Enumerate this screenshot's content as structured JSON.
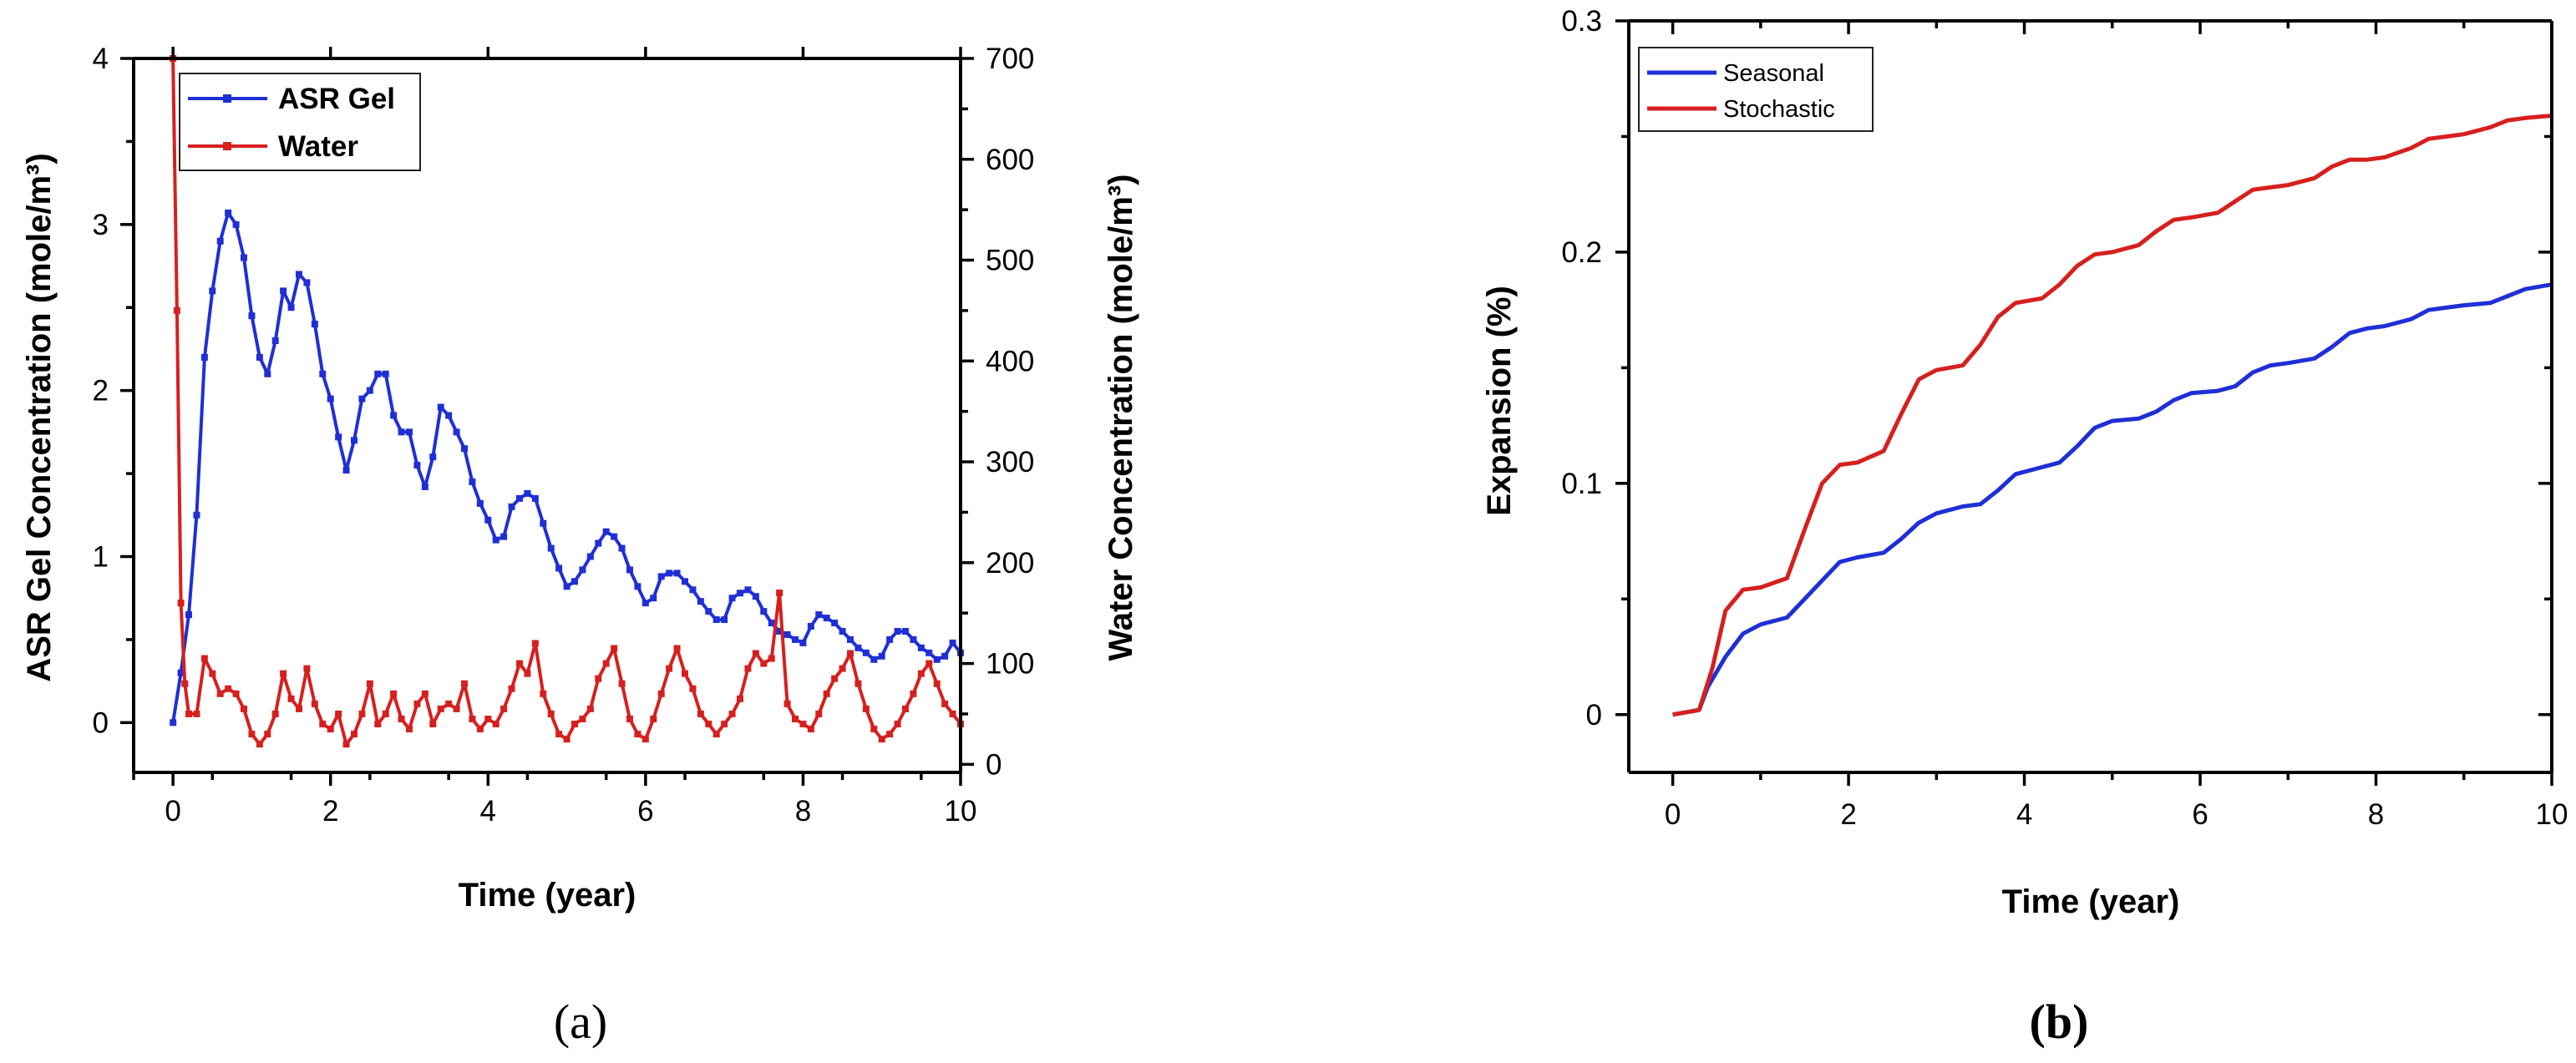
{
  "chart_data": [
    {
      "type": "line",
      "panel_label": "(a)",
      "xlabel": "Time (year)",
      "ylabel": "ASR Gel Concentration (mole/m³)",
      "y2label": "Water Concentration (mole/m³)",
      "xlim": [
        -0.5,
        10
      ],
      "ylim": [
        -0.3,
        4
      ],
      "y2lim": [
        0,
        700
      ],
      "xticks": [
        0,
        2,
        4,
        6,
        8,
        10
      ],
      "yticks": [
        0,
        1,
        2,
        3,
        4
      ],
      "y2ticks": [
        0,
        100,
        200,
        300,
        400,
        500,
        600,
        700
      ],
      "legend_position": "top-left",
      "series": [
        {
          "name": "ASR Gel",
          "axis": "left",
          "color": "#1f2fd6",
          "marker": "square",
          "x": [
            0,
            0.1,
            0.2,
            0.3,
            0.4,
            0.5,
            0.6,
            0.7,
            0.8,
            0.9,
            1.0,
            1.1,
            1.2,
            1.3,
            1.4,
            1.5,
            1.6,
            1.7,
            1.8,
            1.9,
            2.0,
            2.1,
            2.2,
            2.3,
            2.4,
            2.5,
            2.6,
            2.7,
            2.8,
            2.9,
            3.0,
            3.1,
            3.2,
            3.3,
            3.4,
            3.5,
            3.6,
            3.7,
            3.8,
            3.9,
            4.0,
            4.1,
            4.2,
            4.3,
            4.4,
            4.5,
            4.6,
            4.7,
            4.8,
            4.9,
            5.0,
            5.1,
            5.2,
            5.3,
            5.4,
            5.5,
            5.6,
            5.7,
            5.8,
            5.9,
            6.0,
            6.1,
            6.2,
            6.3,
            6.4,
            6.5,
            6.6,
            6.7,
            6.8,
            6.9,
            7.0,
            7.1,
            7.2,
            7.3,
            7.4,
            7.5,
            7.6,
            7.7,
            7.8,
            7.9,
            8.0,
            8.1,
            8.2,
            8.3,
            8.4,
            8.5,
            8.6,
            8.7,
            8.8,
            8.9,
            9.0,
            9.1,
            9.2,
            9.3,
            9.4,
            9.5,
            9.6,
            9.7,
            9.8,
            9.9,
            10.0
          ],
          "y": [
            0,
            0.3,
            0.65,
            1.25,
            2.2,
            2.6,
            2.9,
            3.07,
            3.0,
            2.8,
            2.45,
            2.2,
            2.1,
            2.3,
            2.6,
            2.5,
            2.7,
            2.65,
            2.4,
            2.1,
            1.95,
            1.72,
            1.52,
            1.7,
            1.95,
            2.0,
            2.1,
            2.1,
            1.85,
            1.75,
            1.75,
            1.55,
            1.42,
            1.6,
            1.9,
            1.85,
            1.75,
            1.65,
            1.45,
            1.32,
            1.22,
            1.1,
            1.12,
            1.3,
            1.35,
            1.38,
            1.35,
            1.2,
            1.05,
            0.93,
            0.82,
            0.85,
            0.92,
            1.0,
            1.08,
            1.15,
            1.12,
            1.05,
            0.92,
            0.82,
            0.72,
            0.75,
            0.88,
            0.9,
            0.9,
            0.85,
            0.8,
            0.73,
            0.67,
            0.62,
            0.62,
            0.75,
            0.78,
            0.8,
            0.76,
            0.67,
            0.6,
            0.55,
            0.53,
            0.5,
            0.48,
            0.58,
            0.65,
            0.63,
            0.6,
            0.55,
            0.5,
            0.45,
            0.42,
            0.38,
            0.4,
            0.5,
            0.55,
            0.55,
            0.5,
            0.45,
            0.42,
            0.38,
            0.4,
            0.48,
            0.42
          ]
        },
        {
          "name": "Water",
          "axis": "right",
          "color": "#d6201e",
          "marker": "square",
          "x": [
            0,
            0.05,
            0.1,
            0.15,
            0.2,
            0.3,
            0.4,
            0.5,
            0.6,
            0.7,
            0.8,
            0.9,
            1.0,
            1.1,
            1.2,
            1.3,
            1.4,
            1.5,
            1.6,
            1.7,
            1.8,
            1.9,
            2.0,
            2.1,
            2.2,
            2.3,
            2.4,
            2.5,
            2.6,
            2.7,
            2.8,
            2.9,
            3.0,
            3.1,
            3.2,
            3.3,
            3.4,
            3.5,
            3.6,
            3.7,
            3.8,
            3.9,
            4.0,
            4.1,
            4.2,
            4.3,
            4.4,
            4.5,
            4.6,
            4.7,
            4.8,
            4.9,
            5.0,
            5.1,
            5.2,
            5.3,
            5.4,
            5.5,
            5.6,
            5.7,
            5.8,
            5.9,
            6.0,
            6.1,
            6.2,
            6.3,
            6.4,
            6.5,
            6.6,
            6.7,
            6.8,
            6.9,
            7.0,
            7.1,
            7.2,
            7.3,
            7.4,
            7.5,
            7.6,
            7.7,
            7.8,
            7.9,
            8.0,
            8.1,
            8.2,
            8.3,
            8.4,
            8.5,
            8.6,
            8.7,
            8.8,
            8.9,
            9.0,
            9.1,
            9.2,
            9.3,
            9.4,
            9.5,
            9.6,
            9.7,
            9.8,
            9.9,
            10.0
          ],
          "y": [
            700,
            450,
            160,
            80,
            50,
            50,
            105,
            90,
            70,
            75,
            70,
            55,
            30,
            20,
            30,
            50,
            90,
            65,
            55,
            95,
            60,
            40,
            35,
            50,
            20,
            30,
            50,
            80,
            40,
            50,
            70,
            45,
            35,
            60,
            70,
            40,
            55,
            60,
            55,
            80,
            45,
            35,
            45,
            40,
            55,
            75,
            100,
            90,
            120,
            70,
            50,
            30,
            25,
            40,
            45,
            55,
            85,
            100,
            115,
            80,
            45,
            30,
            25,
            45,
            70,
            95,
            115,
            90,
            75,
            50,
            40,
            30,
            40,
            50,
            65,
            95,
            110,
            100,
            105,
            170,
            60,
            45,
            40,
            35,
            50,
            70,
            85,
            95,
            110,
            80,
            55,
            35,
            25,
            30,
            40,
            55,
            70,
            90,
            100,
            80,
            60,
            50,
            40
          ]
        }
      ]
    },
    {
      "type": "line",
      "panel_label": "(b)",
      "xlabel": "Time (year)",
      "ylabel": "Expansion (%)",
      "xlim": [
        -0.5,
        10
      ],
      "ylim": [
        -0.025,
        0.3
      ],
      "xticks": [
        0,
        2,
        4,
        6,
        8,
        10
      ],
      "yticks": [
        0,
        0.1,
        0.2,
        0.3
      ],
      "ytick_labels": [
        "0",
        "0.1",
        "0.2",
        "0.3"
      ],
      "legend_position": "top-left",
      "series": [
        {
          "name": "Seasonal",
          "color": "#1f2fd6",
          "x": [
            0,
            0.3,
            0.4,
            0.6,
            0.8,
            1.0,
            1.3,
            1.5,
            1.7,
            1.9,
            2.1,
            2.4,
            2.6,
            2.8,
            3.0,
            3.3,
            3.5,
            3.7,
            3.9,
            4.2,
            4.4,
            4.6,
            4.8,
            5.0,
            5.3,
            5.5,
            5.7,
            5.9,
            6.2,
            6.4,
            6.6,
            6.8,
            7.0,
            7.3,
            7.5,
            7.7,
            7.9,
            8.1,
            8.4,
            8.6,
            8.8,
            9.0,
            9.3,
            9.5,
            9.7,
            10.0
          ],
          "y": [
            0,
            0.002,
            0.012,
            0.025,
            0.035,
            0.039,
            0.042,
            0.05,
            0.058,
            0.066,
            0.068,
            0.07,
            0.076,
            0.083,
            0.087,
            0.09,
            0.091,
            0.097,
            0.104,
            0.107,
            0.109,
            0.116,
            0.124,
            0.127,
            0.128,
            0.131,
            0.136,
            0.139,
            0.14,
            0.142,
            0.148,
            0.151,
            0.152,
            0.154,
            0.159,
            0.165,
            0.167,
            0.168,
            0.171,
            0.175,
            0.176,
            0.177,
            0.178,
            0.181,
            0.184,
            0.186
          ]
        },
        {
          "name": "Stochastic",
          "color": "#d6201e",
          "x": [
            0,
            0.3,
            0.45,
            0.6,
            0.8,
            1.0,
            1.3,
            1.5,
            1.7,
            1.9,
            2.1,
            2.4,
            2.6,
            2.8,
            3.0,
            3.3,
            3.5,
            3.7,
            3.9,
            4.2,
            4.4,
            4.6,
            4.8,
            5.0,
            5.3,
            5.5,
            5.7,
            5.9,
            6.2,
            6.4,
            6.6,
            6.8,
            7.0,
            7.3,
            7.5,
            7.7,
            7.9,
            8.1,
            8.4,
            8.6,
            8.8,
            9.0,
            9.3,
            9.5,
            9.7,
            10.0
          ],
          "y": [
            0,
            0.002,
            0.02,
            0.045,
            0.054,
            0.055,
            0.059,
            0.08,
            0.1,
            0.108,
            0.109,
            0.114,
            0.13,
            0.145,
            0.149,
            0.151,
            0.16,
            0.172,
            0.178,
            0.18,
            0.186,
            0.194,
            0.199,
            0.2,
            0.203,
            0.209,
            0.214,
            0.215,
            0.217,
            0.222,
            0.227,
            0.228,
            0.229,
            0.232,
            0.237,
            0.24,
            0.24,
            0.241,
            0.245,
            0.249,
            0.25,
            0.251,
            0.254,
            0.257,
            0.258,
            0.259
          ]
        }
      ]
    }
  ]
}
